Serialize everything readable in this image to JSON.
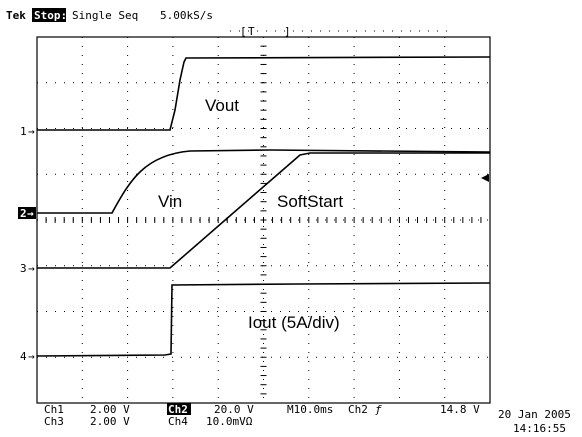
{
  "header": {
    "brand": "Tek",
    "state": "Stop:",
    "mode": "Single Seq",
    "rate": "5.00kS/s",
    "trigger_window": "T"
  },
  "markers": [
    "1",
    "2",
    "3",
    "4"
  ],
  "traces": [
    "Vout",
    "Vin",
    "SoftStart",
    "Iout (5A/div)"
  ],
  "footer": {
    "ch1": "Ch1",
    "ch1_scale": "2.00 V",
    "ch3": "Ch3",
    "ch3_scale": "2.00 V",
    "ch2": "Ch2",
    "ch2_scale": "20.0 V",
    "ch4": "Ch4",
    "ch4_scale": "10.0mVΩ",
    "timebase": "M10.0ms",
    "trig_source": "Ch2",
    "trig_slope": "ƒ",
    "trig_level": "14.8 V",
    "date": "20 Jan 2005",
    "time": "14:16:55"
  }
}
